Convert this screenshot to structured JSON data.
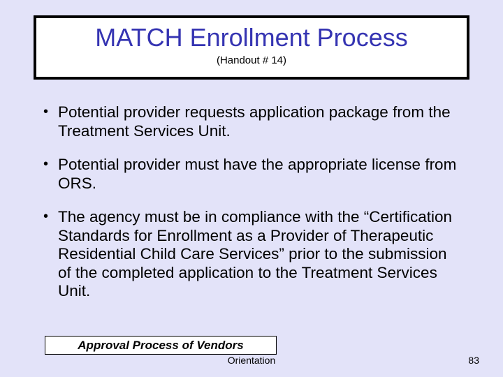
{
  "colors": {
    "slide_bg": "#e3e3f9",
    "title_border": "#000000",
    "title_color": "#3534b2",
    "text_color": "#000000"
  },
  "title": "MATCH Enrollment Process",
  "subtitle": "(Handout # 14)",
  "bullets": [
    "Potential provider requests application package from the Treatment Services Unit.",
    "Potential provider must have the appropriate license from ORS.",
    " The agency must be in compliance with the “Certification Standards for Enrollment as a Provider of Therapeutic Residential Child Care Services” prior to the submission of the completed application to the Treatment Services Unit."
  ],
  "footer": {
    "approval_label": "Approval Process of Vendors",
    "orientation_label": "Orientation",
    "page_number": "83"
  }
}
